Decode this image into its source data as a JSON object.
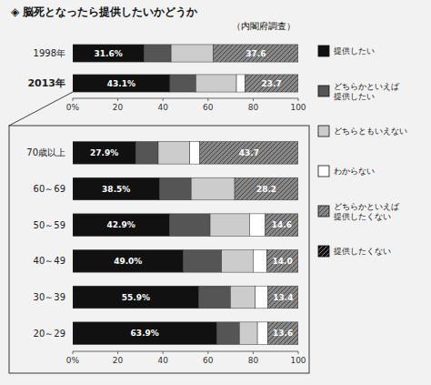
{
  "chart_data": [
    {
      "type": "bar",
      "orientation": "horizontal",
      "stacked": true,
      "title": "◈ 脳死となったら提供したいかどうか",
      "subtitle": "（内閣府調査）",
      "categories": [
        "1998年",
        "2013年"
      ],
      "series": [
        {
          "name": "提供したい",
          "color": "#111111",
          "values": [
            31.6,
            43.1
          ],
          "data_labels": true,
          "value_labels": [
            "31.6%",
            "43.1%"
          ]
        },
        {
          "name": "どちらかといえば\n提供したい",
          "color": "#555555",
          "values": [
            12.0,
            11.5
          ]
        },
        {
          "name": "どちらともいえない",
          "color": "#cccccc",
          "values": [
            18.8,
            18.0
          ]
        },
        {
          "name": "わからない",
          "color": "#ffffff",
          "values": [
            0.0,
            3.7
          ]
        },
        {
          "name": "どちらかといえば\n提供したくない",
          "color": "#888888",
          "values": [
            37.6,
            23.7
          ],
          "data_labels": true,
          "value_labels": [
            "37.6",
            "23.7"
          ]
        },
        {
          "name": "提供したくない",
          "color": "#111111",
          "values": [
            0.0,
            0.0
          ]
        }
      ],
      "xlim": [
        0,
        100
      ],
      "xticks": [
        {
          "value": 0,
          "label": "0%"
        },
        20,
        40,
        60,
        80,
        100
      ],
      "grid": false,
      "legend": "right"
    },
    {
      "type": "bar",
      "orientation": "horizontal",
      "stacked": true,
      "categories": [
        "70歳以上",
        "60～69",
        "50～59",
        "40～49",
        "30～39",
        "20～29"
      ],
      "series": [
        {
          "color": "#111111",
          "values": [
            27.9,
            38.5,
            42.9,
            49.0,
            55.9,
            63.9
          ],
          "data_labels": true,
          "value_labels": [
            "27.9%",
            "38.5%",
            "42.9%",
            "49.0%",
            "55.9%",
            "63.9%"
          ]
        },
        {
          "color": "#555555",
          "values": [
            10.0,
            14.0,
            18.0,
            17.0,
            14.0,
            10.0
          ]
        },
        {
          "color": "#cccccc",
          "values": [
            14.0,
            19.3,
            17.5,
            14.0,
            11.0,
            8.0
          ]
        },
        {
          "color": "#ffffff",
          "values": [
            4.4,
            0.0,
            7.0,
            6.0,
            5.7,
            4.5
          ]
        },
        {
          "color": "#888888",
          "values": [
            43.7,
            28.2,
            14.6,
            14.0,
            13.4,
            13.6
          ],
          "data_labels": true,
          "value_labels": [
            "43.7",
            "28.2",
            "14.6",
            "14.0",
            "13.4",
            "13.6"
          ]
        },
        {
          "color": "#111111",
          "values": [
            0.0,
            0.0,
            0.0,
            0.0,
            0.0,
            0.0
          ]
        }
      ],
      "xlim": [
        0,
        100
      ],
      "xticks": [
        {
          "value": 0,
          "label": "0%"
        },
        20,
        40,
        60,
        80,
        100
      ],
      "grid": false
    }
  ]
}
